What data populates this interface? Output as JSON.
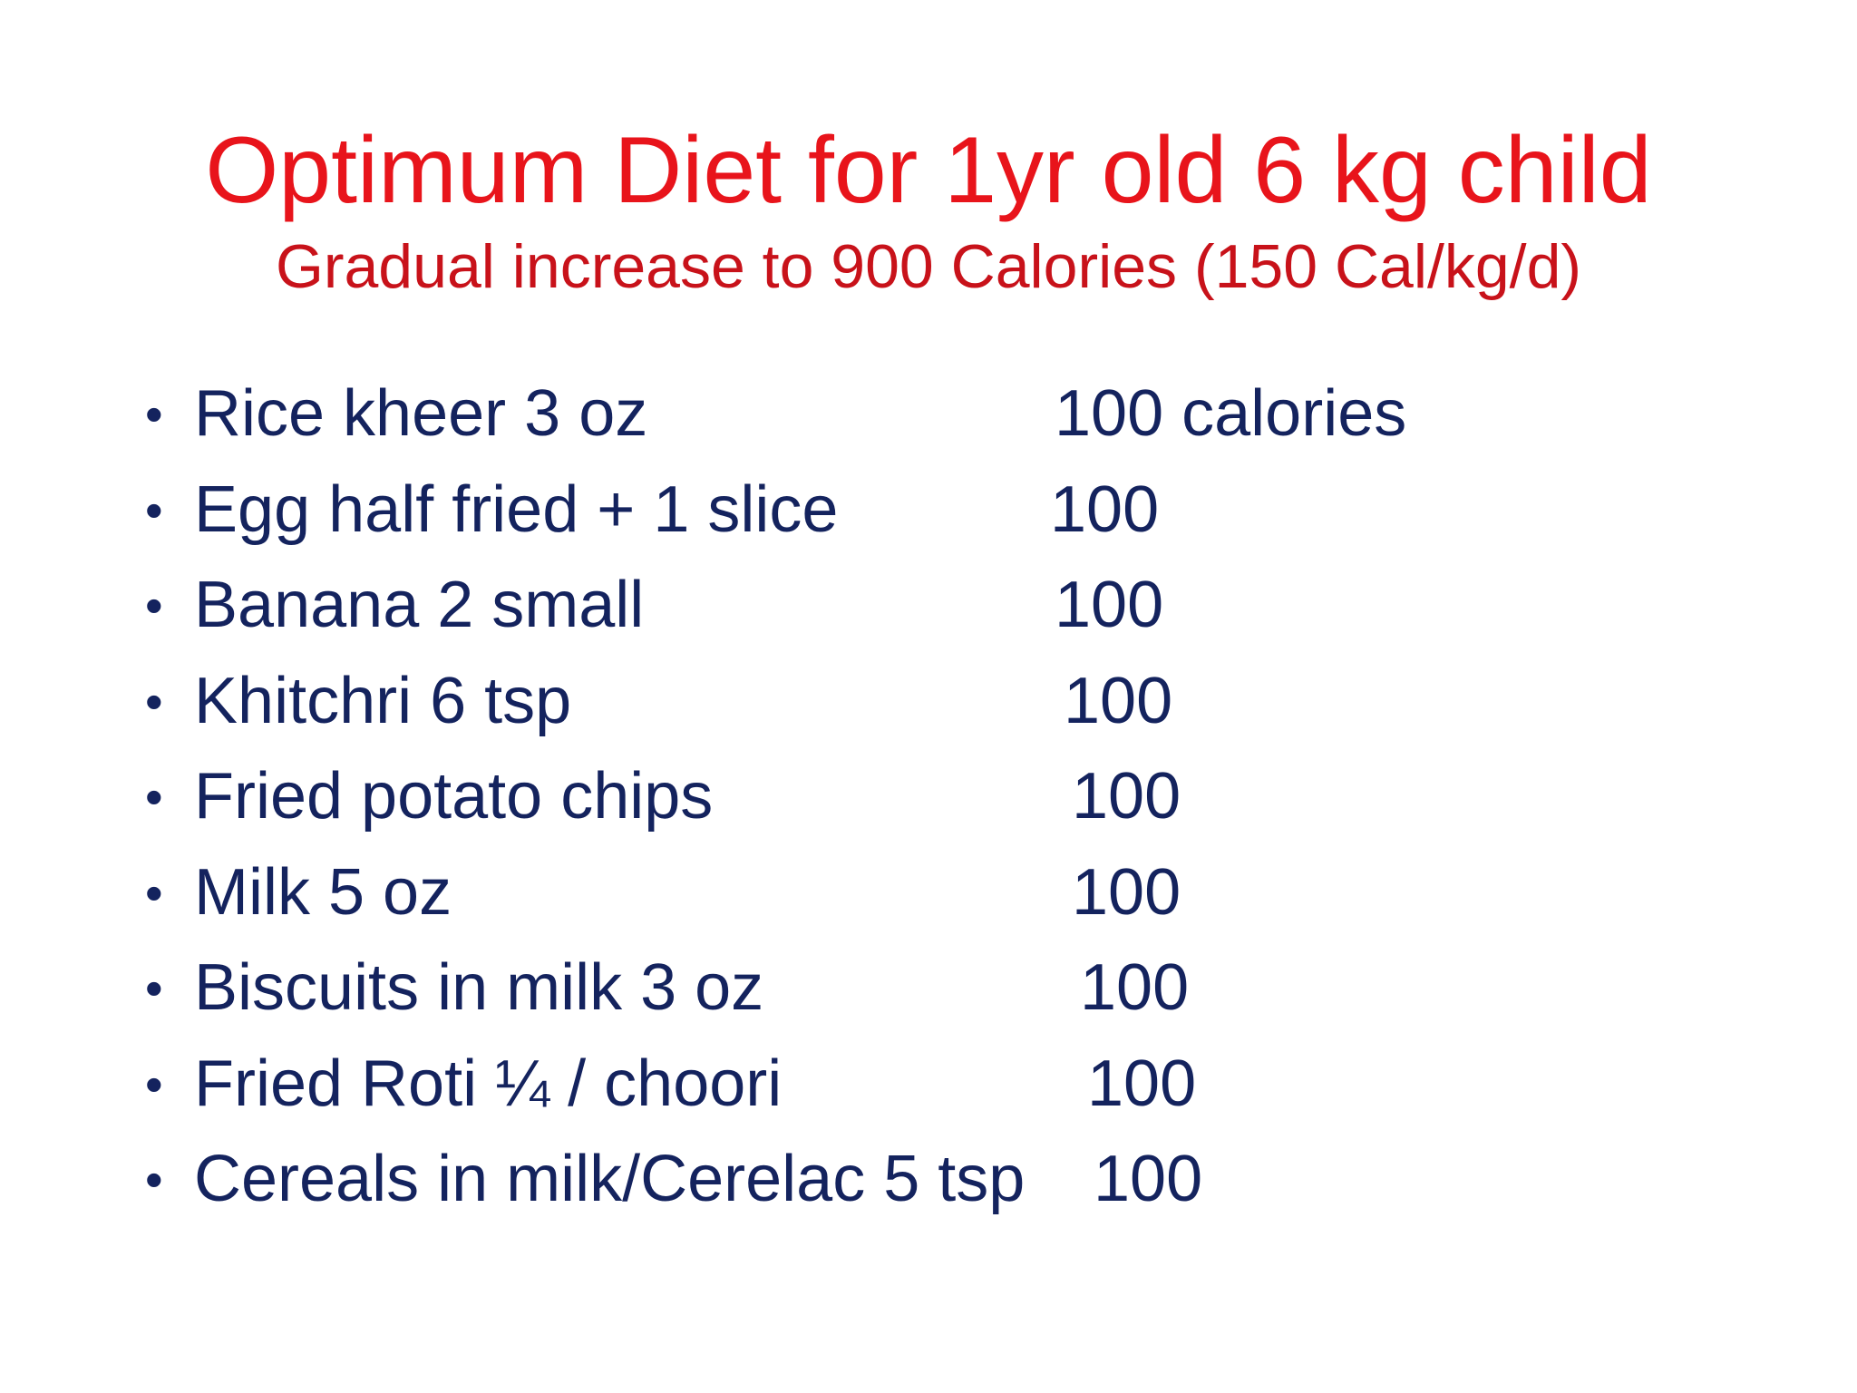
{
  "slide": {
    "title": "Optimum Diet for 1yr old 6 kg child",
    "subtitle": "Gradual increase to 900 Calories (150 Cal/kg/d)",
    "bullet_glyph": "•",
    "colors": {
      "title": "#e8141b",
      "subtitle": "#c8121a",
      "body_text": "#14235e",
      "background": "#ffffff"
    },
    "items": [
      {
        "food": "Rice kheer 3 oz",
        "calories": "100 calories"
      },
      {
        "food": "Egg half fried + 1 slice",
        "calories": "100"
      },
      {
        "food": "Banana  2 small",
        "calories": "100"
      },
      {
        "food": "Khitchri 6 tsp",
        "calories": "100"
      },
      {
        "food": "Fried potato chips",
        "calories": "100"
      },
      {
        "food": "Milk 5 oz",
        "calories": "100"
      },
      {
        "food": "Biscuits in milk 3 oz",
        "calories": "100"
      },
      {
        "food": "Fried Roti ¼  / choori",
        "calories": "100"
      },
      {
        "food": "Cereals in milk/Cerelac 5 tsp",
        "calories": "100"
      }
    ]
  }
}
